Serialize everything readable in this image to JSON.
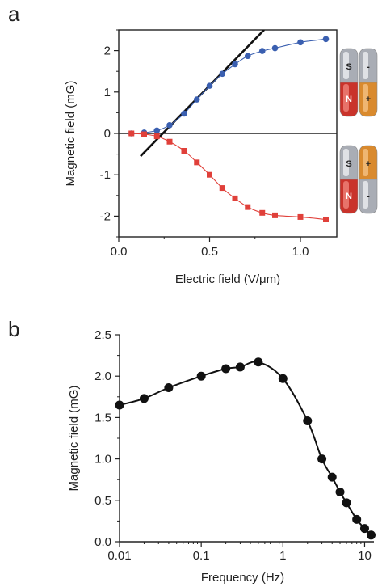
{
  "chart_data": [
    {
      "panel": "a",
      "type": "scatter",
      "xlabel": "Electric field (V/μm)",
      "ylabel": "Magnetic field (mG)",
      "xlim": [
        0.0,
        1.2
      ],
      "ylim": [
        -2.5,
        2.5
      ],
      "xticks": [
        0.0,
        0.5,
        1.0
      ],
      "xtick_labels": [
        "0.0",
        "0.5",
        "1.0"
      ],
      "yticks": [
        -2,
        -1,
        0,
        1,
        2
      ],
      "ytick_labels": [
        "-2",
        "-1",
        "0",
        "1",
        "2"
      ],
      "grid": false,
      "series": [
        {
          "color": "#3a5fb0",
          "marker": "circle",
          "x": [
            0.07,
            0.14,
            0.21,
            0.28,
            0.36,
            0.43,
            0.5,
            0.57,
            0.64,
            0.71,
            0.79,
            0.86,
            1.0,
            1.14
          ],
          "y": [
            0.0,
            0.02,
            0.07,
            0.2,
            0.48,
            0.82,
            1.15,
            1.44,
            1.67,
            1.87,
            1.99,
            2.06,
            2.2,
            2.28
          ]
        },
        {
          "color": "#e0403a",
          "marker": "square",
          "x": [
            0.07,
            0.14,
            0.21,
            0.28,
            0.36,
            0.43,
            0.5,
            0.57,
            0.64,
            0.71,
            0.79,
            0.86,
            1.0,
            1.14
          ],
          "y": [
            0.0,
            -0.02,
            -0.07,
            -0.2,
            -0.42,
            -0.7,
            -1.0,
            -1.32,
            -1.57,
            -1.78,
            -1.92,
            -1.98,
            -2.02,
            -2.08
          ]
        }
      ],
      "fit_line": {
        "x": [
          0.12,
          0.8
        ],
        "y": [
          -0.55,
          2.5
        ],
        "color": "#111111"
      },
      "insets": [
        {
          "top_left": "S",
          "top_right": "-",
          "bottom_left": "N",
          "bottom_right": "+"
        },
        {
          "top_left": "S",
          "top_right": "+",
          "bottom_left": "N",
          "bottom_right": "-"
        }
      ]
    },
    {
      "panel": "b",
      "type": "line",
      "xlabel": "Frequency (Hz)",
      "ylabel": "Magnetic field (mG)",
      "xscale": "log",
      "xlim": [
        0.01,
        13
      ],
      "ylim": [
        0.0,
        2.5
      ],
      "xticks": [
        0.01,
        0.1,
        1,
        10
      ],
      "xtick_labels": [
        "0.01",
        "0.1",
        "1",
        "10"
      ],
      "yticks": [
        0.0,
        0.5,
        1.0,
        1.5,
        2.0,
        2.5
      ],
      "ytick_labels": [
        "0.0",
        "0.5",
        "1.0",
        "1.5",
        "2.0",
        "2.5"
      ],
      "grid": false,
      "series": [
        {
          "color": "#111111",
          "marker": "circle",
          "x": [
            0.01,
            0.02,
            0.04,
            0.1,
            0.2,
            0.3,
            0.5,
            1,
            2,
            3,
            4,
            5,
            6,
            8,
            10,
            12
          ],
          "y": [
            1.65,
            1.73,
            1.86,
            2.0,
            2.09,
            2.11,
            2.17,
            1.97,
            1.46,
            1.0,
            0.78,
            0.6,
            0.47,
            0.27,
            0.16,
            0.08
          ]
        }
      ]
    }
  ]
}
